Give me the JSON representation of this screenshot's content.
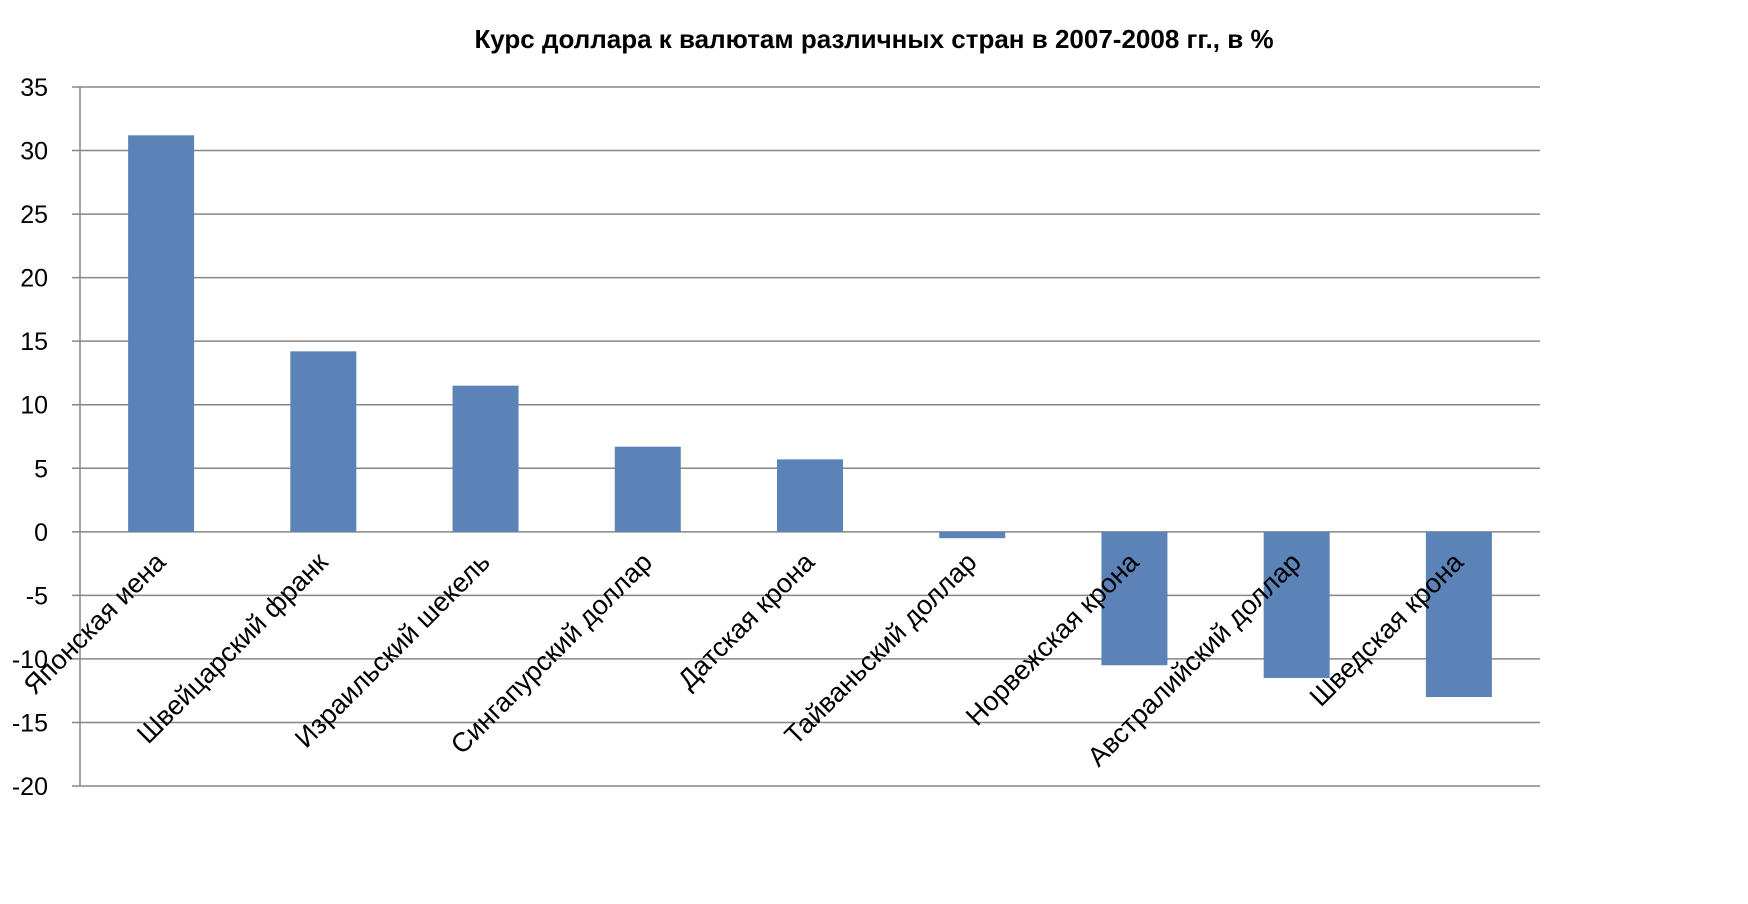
{
  "chart_data": {
    "type": "bar",
    "title": "Курс доллара к валютам различных стран в 2007-2008 гг., в %",
    "xlabel": "",
    "ylabel": "",
    "categories": [
      "Японская иена",
      "Швейцарский франк",
      "Израильский шекель",
      "Сингапурский доллар",
      "Датская крона",
      "Тайваньский доллар",
      "Норвежская крона",
      "Австралийский доллар",
      "Шведская крона"
    ],
    "series": [
      {
        "values": [
          31.2,
          14.2,
          11.5,
          6.7,
          5.7,
          -0.5,
          -10.5,
          -11.5,
          -13.0
        ],
        "color": "#5b83b8"
      }
    ],
    "ylim": [
      -20,
      35
    ],
    "yticks": [
      35,
      30,
      25,
      20,
      15,
      10,
      5,
      0,
      -5,
      -10,
      -15,
      -20
    ],
    "grid": true,
    "legend": "none"
  }
}
